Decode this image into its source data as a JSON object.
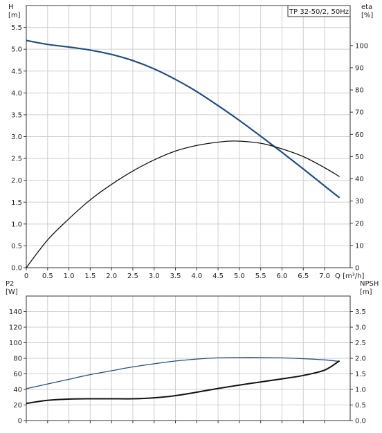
{
  "chart_data": [
    {
      "type": "line",
      "title": "TP 32-50/2, 50Hz",
      "xlabel": "Q [m³/h]",
      "x_ticks": [
        "0",
        "0.5",
        "1.0",
        "1.5",
        "2.0",
        "2.5",
        "3.0",
        "3.5",
        "4.0",
        "4.5",
        "5.0",
        "5.5",
        "6.0",
        "6.5",
        "7.0"
      ],
      "xlim": [
        0,
        7.6
      ],
      "ylabel_left": [
        "H",
        "[m]"
      ],
      "ylabel_right": [
        "eta",
        "[%]"
      ],
      "left_ticks": [
        "0.0",
        "0.5",
        "1.0",
        "1.5",
        "2.0",
        "2.5",
        "3.0",
        "3.5",
        "4.0",
        "4.5",
        "5.0",
        "5.5"
      ],
      "right_ticks": [
        "0",
        "10",
        "20",
        "30",
        "40",
        "50",
        "60",
        "70",
        "80",
        "90",
        "100"
      ],
      "ylim_left": [
        0,
        6.0
      ],
      "ylim_right": [
        0,
        118
      ],
      "grid": true,
      "series": [
        {
          "axis": "left",
          "color": "#1f4e84",
          "points": [
            [
              0,
              5.2
            ],
            [
              0.5,
              5.11
            ],
            [
              1.0,
              5.05
            ],
            [
              1.5,
              4.98
            ],
            [
              2.0,
              4.88
            ],
            [
              2.5,
              4.74
            ],
            [
              3.0,
              4.55
            ],
            [
              3.5,
              4.31
            ],
            [
              4.0,
              4.03
            ],
            [
              4.5,
              3.71
            ],
            [
              5.0,
              3.37
            ],
            [
              5.5,
              3.01
            ],
            [
              6.0,
              2.64
            ],
            [
              6.5,
              2.26
            ],
            [
              7.0,
              1.87
            ],
            [
              7.35,
              1.6
            ]
          ]
        },
        {
          "axis": "right",
          "color": "#111111",
          "points": [
            [
              0,
              0
            ],
            [
              0.5,
              12.5
            ],
            [
              1.0,
              22.0
            ],
            [
              1.5,
              30.5
            ],
            [
              2.0,
              37.5
            ],
            [
              2.5,
              43.5
            ],
            [
              3.0,
              48.5
            ],
            [
              3.5,
              52.5
            ],
            [
              4.0,
              55.0
            ],
            [
              4.5,
              56.5
            ],
            [
              4.9,
              57.0
            ],
            [
              5.5,
              56.0
            ],
            [
              6.0,
              53.5
            ],
            [
              6.5,
              50.0
            ],
            [
              7.0,
              45.0
            ],
            [
              7.35,
              41.0
            ]
          ]
        }
      ]
    },
    {
      "type": "line",
      "xlim": [
        0,
        7.6
      ],
      "ylabel_left": [
        "P2",
        "[W]"
      ],
      "ylabel_right": [
        "NPSH",
        "[m]"
      ],
      "left_ticks": [
        "0",
        "20",
        "40",
        "60",
        "80",
        "100",
        "120",
        "140"
      ],
      "right_ticks": [
        "0.0",
        "0.5",
        "1.0",
        "1.5",
        "2.0",
        "2.5",
        "3.0",
        "3.5"
      ],
      "ylim_left": [
        0,
        160
      ],
      "ylim_right": [
        0,
        4.0
      ],
      "grid": true,
      "series": [
        {
          "axis": "left",
          "color": "#1f4e84",
          "points": [
            [
              0,
              41
            ],
            [
              0.5,
              47
            ],
            [
              1.0,
              53
            ],
            [
              1.5,
              59
            ],
            [
              2.0,
              64
            ],
            [
              2.5,
              69
            ],
            [
              3.0,
              73
            ],
            [
              3.5,
              76.5
            ],
            [
              4.0,
              79
            ],
            [
              4.5,
              80.5
            ],
            [
              5.0,
              81
            ],
            [
              5.5,
              81
            ],
            [
              6.0,
              80.5
            ],
            [
              6.5,
              79.5
            ],
            [
              7.0,
              78
            ],
            [
              7.35,
              76
            ]
          ]
        },
        {
          "axis": "right",
          "color": "#111111",
          "points": [
            [
              0,
              0.55
            ],
            [
              0.5,
              0.65
            ],
            [
              1.0,
              0.69
            ],
            [
              1.5,
              0.7
            ],
            [
              2.0,
              0.7
            ],
            [
              2.5,
              0.7
            ],
            [
              3.0,
              0.73
            ],
            [
              3.5,
              0.8
            ],
            [
              4.0,
              0.91
            ],
            [
              4.5,
              1.03
            ],
            [
              5.0,
              1.14
            ],
            [
              5.5,
              1.24
            ],
            [
              6.0,
              1.34
            ],
            [
              6.5,
              1.45
            ],
            [
              7.0,
              1.62
            ],
            [
              7.35,
              1.92
            ]
          ]
        }
      ]
    }
  ]
}
